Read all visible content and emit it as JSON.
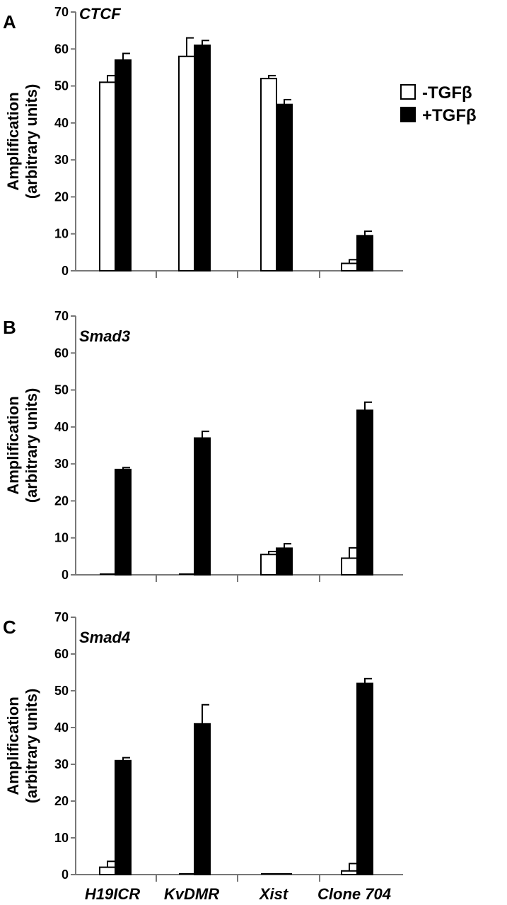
{
  "legend": {
    "entries": [
      {
        "label": "-TGFβ",
        "color": "#ffffff"
      },
      {
        "label": "+TGFβ",
        "color": "#000000"
      }
    ]
  },
  "chart_data": [
    {
      "type": "bar",
      "panel": "A",
      "title": "CTCF",
      "ylabel_line1": "Amplification",
      "ylabel_line2": "(arbitrary units)",
      "ylim": [
        0,
        70
      ],
      "yticks": [
        0,
        10,
        20,
        30,
        40,
        50,
        60,
        70
      ],
      "categories": [
        "H19ICR",
        "KvDMR",
        "Xist",
        "Clone 704"
      ],
      "show_category_labels": false,
      "series": [
        {
          "name": "-TGFβ",
          "values": [
            51,
            58,
            52,
            2
          ],
          "errors": [
            1.8,
            5,
            0.8,
            1
          ]
        },
        {
          "name": "+TGFβ",
          "values": [
            57,
            61,
            45,
            9.5
          ],
          "errors": [
            1.8,
            1.3,
            1.3,
            1.2
          ]
        }
      ]
    },
    {
      "type": "bar",
      "panel": "B",
      "title": "Smad3",
      "ylabel_line1": "Amplification",
      "ylabel_line2": "(arbitrary units)",
      "ylim": [
        0,
        70
      ],
      "yticks": [
        0,
        10,
        20,
        30,
        40,
        50,
        60,
        70
      ],
      "categories": [
        "H19ICR",
        "KvDMR",
        "Xist",
        "Clone 704"
      ],
      "show_category_labels": false,
      "series": [
        {
          "name": "-TGFβ",
          "values": [
            0,
            0,
            5.5,
            4.5
          ],
          "errors": [
            0,
            0,
            0.8,
            2.8
          ]
        },
        {
          "name": "+TGFβ",
          "values": [
            28.5,
            37,
            7.2,
            44.5
          ],
          "errors": [
            0.5,
            1.8,
            1.2,
            2.2
          ]
        }
      ]
    },
    {
      "type": "bar",
      "panel": "C",
      "title": "Smad4",
      "ylabel_line1": "Amplification",
      "ylabel_line2": "(arbitrary units)",
      "ylim": [
        0,
        70
      ],
      "yticks": [
        0,
        10,
        20,
        30,
        40,
        50,
        60,
        70
      ],
      "categories": [
        "H19ICR",
        "KvDMR",
        "Xist",
        "Clone 704"
      ],
      "show_category_labels": true,
      "series": [
        {
          "name": "-TGFβ",
          "values": [
            2,
            0,
            0,
            1
          ],
          "errors": [
            1.6,
            0,
            0,
            2
          ]
        },
        {
          "name": "+TGFβ",
          "values": [
            31,
            41,
            0,
            52
          ],
          "errors": [
            0.8,
            5.2,
            0,
            1.3
          ]
        }
      ]
    }
  ]
}
